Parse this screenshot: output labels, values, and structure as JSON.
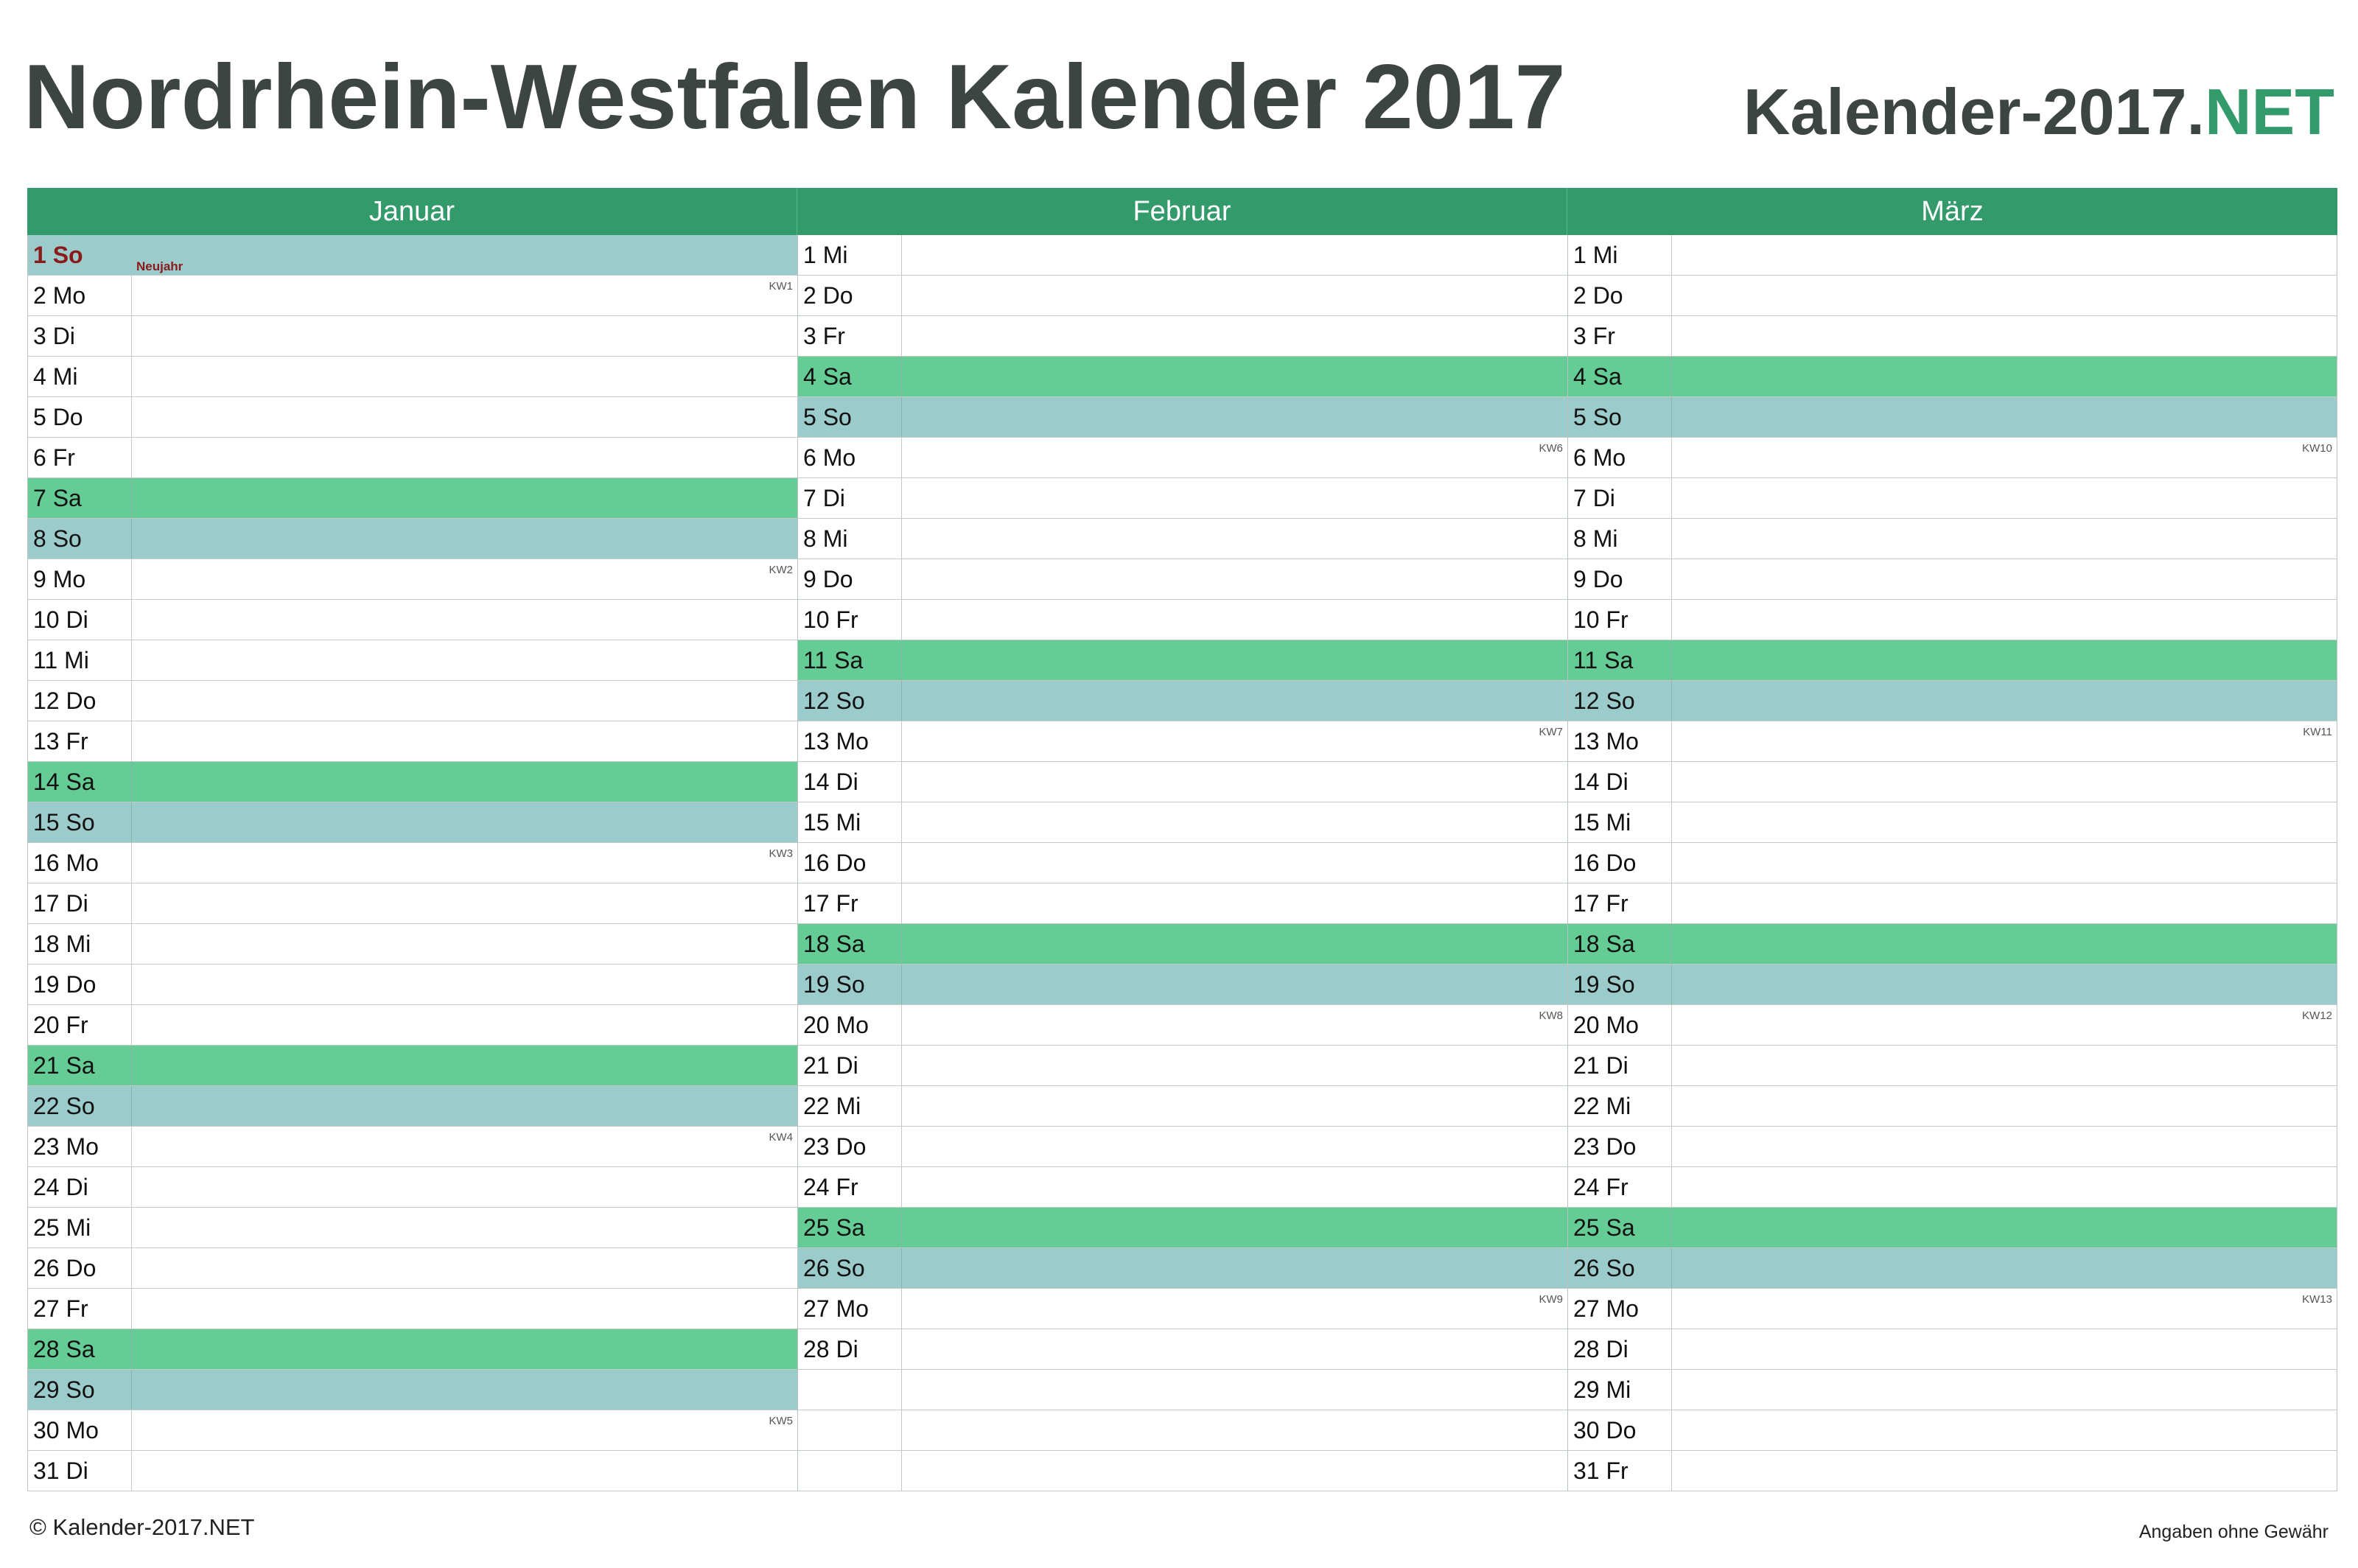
{
  "title": "Nordrhein-Westfalen Kalender 2017",
  "brand": {
    "main": "Kalender-2017.",
    "accent": "NET"
  },
  "colors": {
    "header": "#329a6b",
    "saturday": "#66cc95",
    "sunday": "#9ccbcc",
    "holiday_text": "#8b1a1a",
    "title_text": "#3d4542"
  },
  "months": [
    {
      "name": "Januar",
      "rows": [
        {
          "label": "1 So",
          "type": "hol",
          "holiday": "Neujahr"
        },
        {
          "label": "2 Mo",
          "kw": "KW1"
        },
        {
          "label": "3 Di"
        },
        {
          "label": "4 Mi"
        },
        {
          "label": "5 Do"
        },
        {
          "label": "6 Fr"
        },
        {
          "label": "7 Sa",
          "type": "sat"
        },
        {
          "label": "8 So",
          "type": "sun"
        },
        {
          "label": "9 Mo",
          "kw": "KW2"
        },
        {
          "label": "10 Di"
        },
        {
          "label": "11 Mi"
        },
        {
          "label": "12 Do"
        },
        {
          "label": "13 Fr"
        },
        {
          "label": "14 Sa",
          "type": "sat"
        },
        {
          "label": "15 So",
          "type": "sun"
        },
        {
          "label": "16 Mo",
          "kw": "KW3"
        },
        {
          "label": "17 Di"
        },
        {
          "label": "18 Mi"
        },
        {
          "label": "19 Do"
        },
        {
          "label": "20 Fr"
        },
        {
          "label": "21 Sa",
          "type": "sat"
        },
        {
          "label": "22 So",
          "type": "sun"
        },
        {
          "label": "23 Mo",
          "kw": "KW4"
        },
        {
          "label": "24 Di"
        },
        {
          "label": "25 Mi"
        },
        {
          "label": "26 Do"
        },
        {
          "label": "27 Fr"
        },
        {
          "label": "28 Sa",
          "type": "sat"
        },
        {
          "label": "29 So",
          "type": "sun"
        },
        {
          "label": "30 Mo",
          "kw": "KW5"
        },
        {
          "label": "31 Di"
        }
      ]
    },
    {
      "name": "Februar",
      "rows": [
        {
          "label": "1 Mi"
        },
        {
          "label": "2 Do"
        },
        {
          "label": "3 Fr"
        },
        {
          "label": "4 Sa",
          "type": "sat"
        },
        {
          "label": "5 So",
          "type": "sun"
        },
        {
          "label": "6 Mo",
          "kw": "KW6"
        },
        {
          "label": "7 Di"
        },
        {
          "label": "8 Mi"
        },
        {
          "label": "9 Do"
        },
        {
          "label": "10 Fr"
        },
        {
          "label": "11 Sa",
          "type": "sat"
        },
        {
          "label": "12 So",
          "type": "sun"
        },
        {
          "label": "13 Mo",
          "kw": "KW7"
        },
        {
          "label": "14 Di"
        },
        {
          "label": "15 Mi"
        },
        {
          "label": "16 Do"
        },
        {
          "label": "17 Fr"
        },
        {
          "label": "18 Sa",
          "type": "sat"
        },
        {
          "label": "19 So",
          "type": "sun"
        },
        {
          "label": "20 Mo",
          "kw": "KW8"
        },
        {
          "label": "21 Di"
        },
        {
          "label": "22 Mi"
        },
        {
          "label": "23 Do"
        },
        {
          "label": "24 Fr"
        },
        {
          "label": "25 Sa",
          "type": "sat"
        },
        {
          "label": "26 So",
          "type": "sun"
        },
        {
          "label": "27 Mo",
          "kw": "KW9"
        },
        {
          "label": "28 Di"
        },
        {
          "label": ""
        },
        {
          "label": ""
        },
        {
          "label": ""
        }
      ]
    },
    {
      "name": "März",
      "rows": [
        {
          "label": "1 Mi"
        },
        {
          "label": "2 Do"
        },
        {
          "label": "3 Fr"
        },
        {
          "label": "4 Sa",
          "type": "sat"
        },
        {
          "label": "5 So",
          "type": "sun"
        },
        {
          "label": "6 Mo",
          "kw": "KW10"
        },
        {
          "label": "7 Di"
        },
        {
          "label": "8 Mi"
        },
        {
          "label": "9 Do"
        },
        {
          "label": "10 Fr"
        },
        {
          "label": "11 Sa",
          "type": "sat"
        },
        {
          "label": "12 So",
          "type": "sun"
        },
        {
          "label": "13 Mo",
          "kw": "KW11"
        },
        {
          "label": "14 Di"
        },
        {
          "label": "15 Mi"
        },
        {
          "label": "16 Do"
        },
        {
          "label": "17 Fr"
        },
        {
          "label": "18 Sa",
          "type": "sat"
        },
        {
          "label": "19 So",
          "type": "sun"
        },
        {
          "label": "20 Mo",
          "kw": "KW12"
        },
        {
          "label": "21 Di"
        },
        {
          "label": "22 Mi"
        },
        {
          "label": "23 Do"
        },
        {
          "label": "24 Fr"
        },
        {
          "label": "25 Sa",
          "type": "sat"
        },
        {
          "label": "26 So",
          "type": "sun"
        },
        {
          "label": "27 Mo",
          "kw": "KW13"
        },
        {
          "label": "28 Di"
        },
        {
          "label": "29 Mi"
        },
        {
          "label": "30 Do"
        },
        {
          "label": "31 Fr"
        }
      ]
    }
  ],
  "footer": {
    "copyright": "© Kalender-2017.NET",
    "disclaimer": "Angaben ohne Gewähr"
  }
}
